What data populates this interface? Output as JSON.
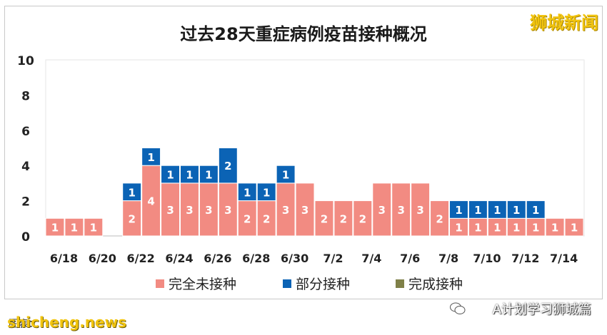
{
  "chart_data": {
    "type": "bar",
    "stacked": true,
    "title": "过去28天重症病例疫苗接种概况",
    "categories": [
      "6/18",
      "6/19",
      "6/20",
      "6/21",
      "6/22",
      "6/23",
      "6/24",
      "6/25",
      "6/26",
      "6/27",
      "6/28",
      "6/29",
      "6/30",
      "7/1",
      "7/2",
      "7/3",
      "7/4",
      "7/5",
      "7/6",
      "7/7",
      "7/8",
      "7/9",
      "7/10",
      "7/11",
      "7/12",
      "7/13",
      "7/14",
      "7/15"
    ],
    "tick_labels": [
      "6/18",
      "6/20",
      "6/22",
      "6/24",
      "6/26",
      "6/28",
      "6/30",
      "7/2",
      "7/4",
      "7/6",
      "7/8",
      "7/10",
      "7/12",
      "7/14"
    ],
    "series": [
      {
        "name": "完全未接种",
        "color": "#f28b82",
        "values": [
          1,
          1,
          1,
          0,
          2,
          4,
          3,
          3,
          3,
          3,
          2,
          2,
          3,
          3,
          2,
          2,
          2,
          3,
          3,
          3,
          2,
          1,
          1,
          1,
          1,
          1,
          1,
          1
        ]
      },
      {
        "name": "部分接种",
        "color": "#0b63b5",
        "values": [
          0,
          0,
          0,
          0,
          1,
          1,
          1,
          1,
          1,
          2,
          1,
          1,
          1,
          0,
          0,
          0,
          0,
          0,
          0,
          0,
          0,
          1,
          1,
          1,
          1,
          1,
          0,
          0
        ]
      },
      {
        "name": "完成接种",
        "color": "#7f8048",
        "values": [
          0,
          0,
          0,
          0,
          0,
          0,
          0,
          0,
          0,
          0,
          0,
          0,
          0,
          0,
          0,
          0,
          0,
          0,
          0,
          0,
          0,
          0,
          0,
          0,
          0,
          0,
          0,
          0
        ]
      }
    ],
    "ylim": [
      0,
      10
    ],
    "yticks": [
      0,
      2,
      4,
      6,
      8,
      10
    ],
    "grid": false,
    "legend_position": "bottom"
  },
  "watermark_top": "狮城新闻",
  "watermark_bottom_left": "shicheng.news",
  "source_label": "图表：",
  "wechat_label": "A计划学习狮城篇"
}
